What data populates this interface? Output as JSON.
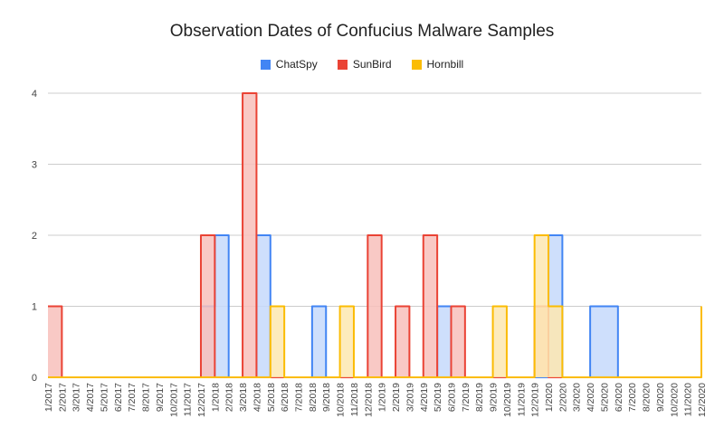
{
  "chart_data": {
    "type": "area",
    "title": "Observation Dates of Confucius Malware Samples",
    "xlabel": "",
    "ylabel": "",
    "ylim": [
      0,
      4
    ],
    "yticks": [
      0,
      1,
      2,
      3,
      4
    ],
    "grid": true,
    "legend_position": "top",
    "categories": [
      "1/2017",
      "2/2017",
      "3/2017",
      "4/2017",
      "5/2017",
      "6/2017",
      "7/2017",
      "8/2017",
      "9/2017",
      "10/2017",
      "11/2017",
      "12/2017",
      "1/2018",
      "2/2018",
      "3/2018",
      "4/2018",
      "5/2018",
      "6/2018",
      "7/2018",
      "8/2018",
      "9/2018",
      "10/2018",
      "11/2018",
      "12/2018",
      "1/2019",
      "2/2019",
      "3/2019",
      "4/2019",
      "5/2019",
      "6/2019",
      "7/2019",
      "8/2019",
      "9/2019",
      "10/2019",
      "11/2019",
      "12/2019",
      "1/2020",
      "2/2020",
      "3/2020",
      "4/2020",
      "5/2020",
      "6/2020",
      "7/2020",
      "8/2020",
      "9/2020",
      "10/2020",
      "11/2020",
      "12/2020"
    ],
    "series": [
      {
        "name": "ChatSpy",
        "color": "#4285f4",
        "fill": "#c6d9fb",
        "values": [
          0,
          0,
          0,
          0,
          0,
          0,
          0,
          0,
          0,
          0,
          0,
          1,
          2,
          0,
          0,
          2,
          0,
          0,
          0,
          1,
          0,
          0,
          0,
          0,
          0,
          0,
          0,
          0,
          1,
          0,
          0,
          0,
          0,
          0,
          0,
          0,
          2,
          0,
          0,
          1,
          1,
          0,
          0,
          0,
          0,
          0,
          0,
          0
        ]
      },
      {
        "name": "SunBird",
        "color": "#ea4335",
        "fill": "#f8bfbb",
        "values": [
          1,
          0,
          0,
          0,
          0,
          0,
          0,
          0,
          0,
          0,
          0,
          2,
          0,
          0,
          4,
          0,
          0,
          0,
          0,
          0,
          0,
          0,
          0,
          2,
          0,
          1,
          0,
          2,
          0,
          1,
          0,
          0,
          0,
          0,
          0,
          1,
          0,
          0,
          0,
          0,
          0,
          0,
          0,
          0,
          0,
          0,
          0,
          0
        ]
      },
      {
        "name": "Hornbill",
        "color": "#fbbc04",
        "fill": "#fde8b0",
        "values": [
          0,
          0,
          0,
          0,
          0,
          0,
          0,
          0,
          0,
          0,
          0,
          0,
          0,
          0,
          0,
          0,
          1,
          0,
          0,
          0,
          0,
          1,
          0,
          0,
          0,
          0,
          0,
          0,
          0,
          0,
          0,
          0,
          1,
          0,
          0,
          2,
          1,
          0,
          0,
          0,
          0,
          0,
          0,
          0,
          0,
          0,
          0,
          1
        ]
      }
    ]
  }
}
